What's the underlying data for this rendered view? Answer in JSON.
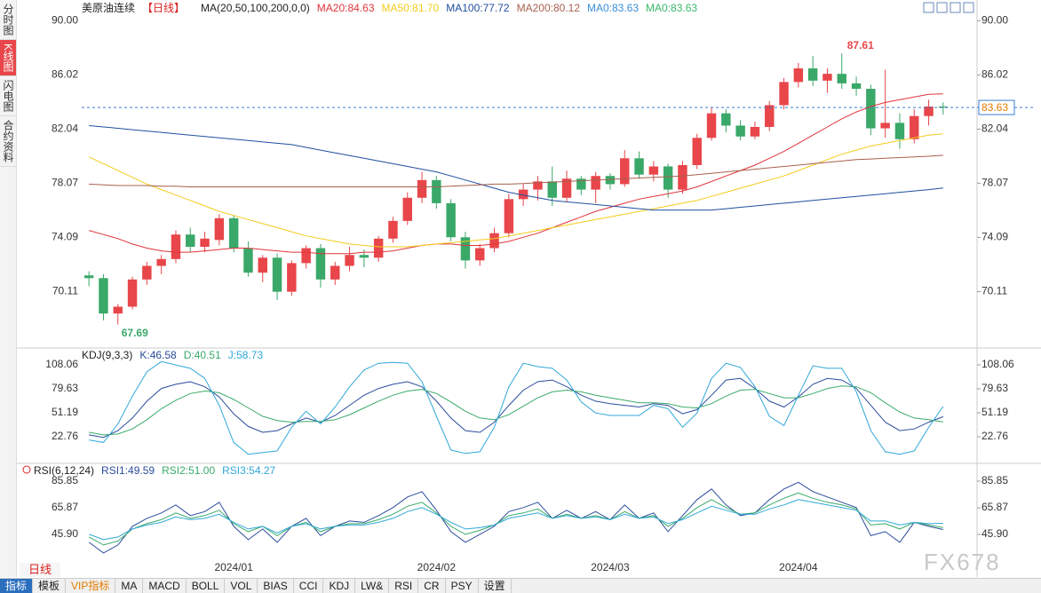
{
  "sidebar_tabs": [
    "分时图",
    "K线图",
    "闪电图",
    "合约资料"
  ],
  "period_tab": "日线",
  "toolbar_tabs": [
    "指标",
    "模板",
    "VIP指标",
    "MA",
    "MACD",
    "BOLL",
    "VOL",
    "BIAS",
    "CCI",
    "KDJ",
    "LW&",
    "RSI",
    "CR",
    "PSY",
    "设置"
  ],
  "watermark": "FX678",
  "chart_data": [
    {
      "type": "candlestick",
      "title": "美原油连续",
      "period": "【日线】",
      "indicator": "MA(20,50,100,200,0,0)",
      "up_color": "#e8464a",
      "down_color": "#3aa868",
      "ylim": [
        66.1,
        91
      ],
      "yticks": [
        {
          "value": 90,
          "label": "90.00"
        },
        86.02,
        82.04,
        78.07,
        74.09,
        70.11
      ],
      "categories": [
        null,
        null,
        null,
        null,
        null,
        null,
        null,
        null,
        null,
        null,
        "2024/01",
        null,
        null,
        null,
        null,
        null,
        null,
        null,
        null,
        null,
        null,
        null,
        null,
        null,
        "2024/02",
        null,
        null,
        null,
        null,
        null,
        null,
        null,
        null,
        null,
        null,
        null,
        "2024/03",
        null,
        null,
        null,
        null,
        null,
        null,
        null,
        null,
        null,
        null,
        null,
        null,
        "2024/04",
        null,
        null,
        null,
        null,
        null,
        null,
        null,
        null,
        null,
        null
      ],
      "open": [
        71.3,
        71.1,
        68.5,
        69.0,
        71.0,
        72.0,
        72.5,
        74.3,
        73.4,
        73.9,
        75.5,
        73.3,
        71.5,
        72.6,
        70.1,
        72.2,
        73.3,
        71.0,
        72.0,
        72.8,
        72.6,
        74.0,
        75.3,
        77.0,
        78.3,
        76.6,
        74.1,
        72.4,
        73.3,
        74.4,
        76.9,
        77.6,
        78.2,
        77.0,
        78.4,
        77.6,
        78.6,
        78.0,
        79.9,
        78.7,
        79.3,
        77.6,
        79.4,
        81.4,
        83.2,
        82.3,
        81.5,
        82.2,
        83.8,
        85.5,
        86.5,
        85.6,
        86.1,
        85.4,
        85.0,
        82.1,
        82.5,
        81.3,
        83.0,
        83.7
      ],
      "high": [
        71.6,
        71.4,
        69.2,
        71.2,
        72.3,
        72.8,
        74.6,
        74.8,
        74.5,
        75.8,
        75.7,
        73.8,
        72.8,
        72.9,
        72.4,
        73.5,
        73.6,
        72.3,
        73.4,
        73.2,
        74.2,
        75.6,
        77.4,
        78.9,
        78.6,
        76.9,
        74.5,
        73.6,
        74.8,
        77.3,
        78.0,
        78.6,
        79.3,
        79.0,
        78.6,
        78.9,
        78.8,
        80.5,
        80.4,
        79.7,
        79.5,
        79.7,
        81.7,
        83.6,
        83.5,
        82.7,
        82.6,
        84.1,
        85.8,
        86.9,
        87.4,
        86.5,
        87.61,
        85.9,
        85.3,
        86.4,
        83.2,
        83.5,
        84.2,
        84.0
      ],
      "low": [
        70.5,
        68.0,
        67.69,
        68.8,
        70.6,
        71.4,
        72.2,
        73.0,
        73.0,
        73.5,
        73.0,
        71.2,
        70.8,
        69.5,
        69.8,
        71.8,
        70.4,
        70.6,
        71.6,
        71.9,
        72.3,
        73.7,
        75.0,
        76.6,
        76.2,
        73.8,
        71.8,
        72.0,
        73.0,
        74.1,
        76.4,
        76.8,
        76.4,
        76.7,
        77.2,
        76.6,
        77.6,
        77.8,
        78.4,
        78.2,
        77.0,
        77.3,
        79.1,
        81.2,
        81.8,
        81.2,
        81.3,
        81.9,
        83.5,
        85.1,
        85.2,
        84.7,
        85.0,
        84.5,
        81.6,
        81.4,
        80.6,
        81.0,
        82.3,
        83.1
      ],
      "close": [
        71.1,
        68.5,
        69.0,
        71.0,
        72.0,
        72.5,
        74.3,
        73.4,
        74.0,
        75.5,
        73.3,
        71.5,
        72.6,
        70.1,
        72.2,
        73.3,
        71.0,
        72.0,
        72.8,
        72.6,
        74.0,
        75.3,
        77.0,
        78.3,
        76.6,
        74.1,
        72.4,
        73.3,
        74.4,
        76.9,
        77.6,
        78.2,
        77.0,
        78.4,
        77.6,
        78.6,
        78.0,
        79.9,
        78.7,
        79.3,
        77.6,
        79.4,
        81.4,
        83.2,
        82.3,
        81.5,
        82.2,
        83.8,
        85.5,
        86.5,
        85.6,
        86.1,
        85.4,
        85.0,
        82.1,
        82.5,
        81.3,
        83.0,
        83.7,
        83.63
      ],
      "series": [
        {
          "label": "MA20:84.63",
          "color": "#e0353b",
          "values": [
            74.6,
            74.3,
            74.0,
            73.6,
            73.3,
            73.1,
            73.0,
            73.0,
            73.1,
            73.2,
            73.3,
            73.3,
            73.2,
            73.1,
            73.0,
            73.0,
            72.9,
            72.9,
            72.9,
            73.0,
            73.0,
            73.1,
            73.3,
            73.5,
            73.6,
            73.6,
            73.5,
            73.5,
            73.6,
            73.8,
            74.1,
            74.4,
            74.8,
            75.2,
            75.6,
            76.0,
            76.3,
            76.6,
            76.9,
            77.1,
            77.3,
            77.5,
            77.8,
            78.2,
            78.6,
            79.0,
            79.4,
            79.9,
            80.4,
            81.0,
            81.6,
            82.2,
            82.8,
            83.3,
            83.7,
            84.0,
            84.2,
            84.4,
            84.6,
            84.63
          ]
        },
        {
          "label": "MA50:81.70",
          "color": "#f2cc1c",
          "values": [
            80.0,
            79.5,
            79.0,
            78.5,
            78.0,
            77.6,
            77.2,
            76.8,
            76.4,
            76.0,
            75.7,
            75.4,
            75.1,
            74.8,
            74.5,
            74.2,
            74.0,
            73.8,
            73.6,
            73.5,
            73.4,
            73.4,
            73.4,
            73.5,
            73.6,
            73.7,
            73.8,
            73.9,
            74.0,
            74.2,
            74.4,
            74.6,
            74.8,
            75.0,
            75.2,
            75.4,
            75.6,
            75.8,
            76.0,
            76.2,
            76.4,
            76.6,
            76.8,
            77.1,
            77.4,
            77.7,
            78.0,
            78.3,
            78.6,
            79.0,
            79.4,
            79.8,
            80.2,
            80.5,
            80.8,
            81.0,
            81.2,
            81.4,
            81.6,
            81.7
          ]
        },
        {
          "label": "MA100:77.72",
          "color": "#1f4f9e",
          "values": [
            82.3,
            82.2,
            82.1,
            82.0,
            81.9,
            81.8,
            81.7,
            81.6,
            81.5,
            81.4,
            81.3,
            81.2,
            81.1,
            81.0,
            80.9,
            80.7,
            80.5,
            80.3,
            80.1,
            79.9,
            79.7,
            79.5,
            79.3,
            79.1,
            78.9,
            78.6,
            78.3,
            78.0,
            77.7,
            77.4,
            77.2,
            77.0,
            76.8,
            76.7,
            76.6,
            76.5,
            76.4,
            76.3,
            76.2,
            76.1,
            76.1,
            76.1,
            76.1,
            76.1,
            76.2,
            76.3,
            76.4,
            76.5,
            76.6,
            76.7,
            76.8,
            76.9,
            77.0,
            77.1,
            77.2,
            77.3,
            77.4,
            77.5,
            77.6,
            77.72
          ]
        },
        {
          "label": "MA200:80.12",
          "color": "#a8604e",
          "values": [
            78.0,
            77.95,
            77.9,
            77.9,
            77.9,
            77.85,
            77.85,
            77.8,
            77.8,
            77.8,
            77.8,
            77.8,
            77.8,
            77.8,
            77.8,
            77.8,
            77.8,
            77.8,
            77.8,
            77.8,
            77.8,
            77.8,
            77.8,
            77.8,
            77.8,
            77.85,
            77.9,
            77.95,
            78.0,
            78.0,
            78.05,
            78.1,
            78.15,
            78.2,
            78.25,
            78.3,
            78.35,
            78.4,
            78.45,
            78.5,
            78.55,
            78.6,
            78.7,
            78.8,
            78.9,
            79.0,
            79.1,
            79.2,
            79.3,
            79.4,
            79.5,
            79.6,
            79.7,
            79.8,
            79.85,
            79.9,
            79.95,
            80.0,
            80.05,
            80.12
          ]
        }
      ],
      "legend_extra": [
        {
          "label": "MA0:83.63",
          "color": "#3a8fd9"
        },
        {
          "label": "MA0:83.63",
          "color": "#3bb86a"
        }
      ]
    },
    {
      "type": "line",
      "indicator": "KDJ(9,3,3)",
      "ylim": [
        -6.7,
        124.9
      ],
      "yticks": [
        108.06,
        79.63,
        51.19,
        22.76
      ],
      "series": [
        {
          "label": "K:46.58",
          "color": "#2b4c9c",
          "values": [
            25,
            22,
            30,
            45,
            65,
            80,
            85,
            88,
            82,
            70,
            50,
            35,
            28,
            30,
            38,
            45,
            40,
            48,
            60,
            72,
            80,
            85,
            88,
            82,
            65,
            45,
            30,
            28,
            40,
            60,
            78,
            88,
            90,
            82,
            72,
            65,
            62,
            60,
            58,
            62,
            60,
            50,
            55,
            72,
            90,
            92,
            80,
            65,
            58,
            70,
            85,
            92,
            90,
            80,
            60,
            40,
            30,
            32,
            40,
            46.58
          ]
        },
        {
          "label": "D:40.51",
          "color": "#3aaa6a",
          "values": [
            28,
            25,
            26,
            32,
            43,
            56,
            66,
            74,
            77,
            75,
            67,
            57,
            47,
            42,
            40,
            41,
            41,
            43,
            49,
            57,
            65,
            72,
            77,
            79,
            74,
            64,
            53,
            45,
            43,
            49,
            59,
            69,
            76,
            78,
            76,
            72,
            69,
            66,
            63,
            63,
            62,
            58,
            57,
            62,
            71,
            78,
            79,
            74,
            69,
            69,
            74,
            80,
            83,
            82,
            75,
            63,
            52,
            45,
            43,
            40.51
          ]
        },
        {
          "label": "J:58.73",
          "color": "#30a8d8",
          "values": [
            19,
            16,
            38,
            71,
            100,
            112,
            108,
            104,
            92,
            60,
            16,
            2,
            4,
            6,
            34,
            53,
            38,
            58,
            82,
            102,
            110,
            111,
            110,
            88,
            47,
            7,
            3,
            5,
            34,
            82,
            110,
            106,
            104,
            90,
            64,
            51,
            48,
            48,
            48,
            60,
            56,
            34,
            51,
            92,
            110,
            105,
            82,
            47,
            36,
            72,
            107,
            104,
            104,
            76,
            30,
            5,
            2,
            6,
            34,
            58.73
          ]
        }
      ]
    },
    {
      "type": "line",
      "indicator": "RSI(6,12,24)",
      "ylim": [
        20.6,
        97.2
      ],
      "yticks": [
        85.85,
        65.87,
        {
          "value": 45.9,
          "label": "45.90"
        }
      ],
      "series": [
        {
          "label": "RSI1:49.59",
          "color": "#2b4c9c",
          "values": [
            40,
            32,
            38,
            52,
            58,
            62,
            68,
            60,
            63,
            70,
            52,
            42,
            50,
            40,
            52,
            58,
            45,
            52,
            56,
            55,
            60,
            66,
            74,
            78,
            64,
            48,
            40,
            46,
            52,
            63,
            66,
            70,
            58,
            64,
            58,
            63,
            57,
            68,
            58,
            62,
            48,
            60,
            72,
            80,
            68,
            60,
            62,
            72,
            80,
            85,
            78,
            74,
            70,
            66,
            45,
            48,
            40,
            55,
            52,
            49.59
          ]
        },
        {
          "label": "RSI2:51.00",
          "color": "#3aaa6a",
          "values": [
            44,
            38,
            41,
            50,
            54,
            57,
            62,
            58,
            60,
            64,
            54,
            48,
            52,
            45,
            52,
            55,
            48,
            52,
            54,
            54,
            57,
            61,
            67,
            70,
            62,
            52,
            46,
            49,
            53,
            60,
            62,
            65,
            58,
            61,
            58,
            60,
            57,
            63,
            58,
            60,
            52,
            58,
            66,
            72,
            66,
            61,
            62,
            68,
            73,
            77,
            73,
            70,
            68,
            65,
            53,
            54,
            50,
            55,
            53,
            51
          ]
        },
        {
          "label": "RSI3:54.27",
          "color": "#30a8d8",
          "values": [
            46,
            42,
            44,
            50,
            53,
            55,
            59,
            57,
            58,
            61,
            55,
            50,
            52,
            47,
            52,
            54,
            50,
            52,
            53,
            53,
            55,
            58,
            63,
            66,
            61,
            55,
            50,
            51,
            53,
            58,
            60,
            62,
            58,
            60,
            58,
            59,
            57,
            61,
            58,
            59,
            54,
            57,
            62,
            67,
            64,
            61,
            61,
            65,
            68,
            72,
            70,
            68,
            66,
            64,
            56,
            56,
            53,
            55,
            54,
            54.27
          ]
        }
      ]
    }
  ]
}
